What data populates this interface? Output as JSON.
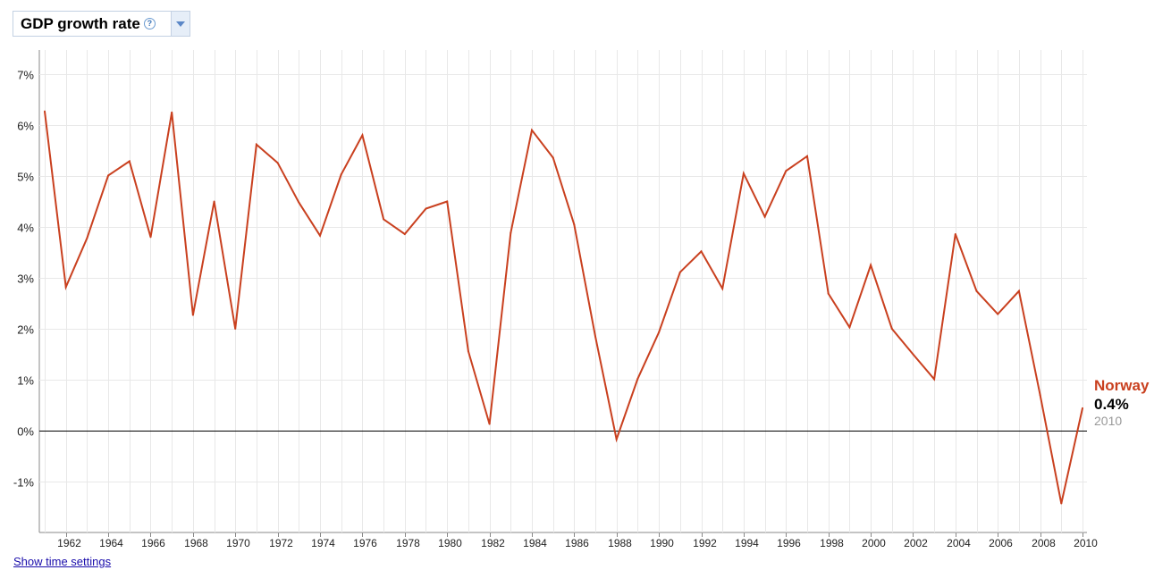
{
  "selector": {
    "metric_label": "GDP growth rate",
    "help_icon": "help-circle-icon",
    "dropdown_icon": "triangle-down-icon"
  },
  "time_settings_link": "Show time settings",
  "end_label": {
    "country": "Norway",
    "value": "0.4%",
    "year": "2010"
  },
  "colors": {
    "series": "#c9401f",
    "grid": "#e8e8e8",
    "axis": "#000000"
  },
  "chart_data": {
    "type": "line",
    "title": "GDP growth rate",
    "xlabel": "",
    "ylabel": "",
    "xlim": [
      1961,
      2010
    ],
    "ylim": [
      -2,
      7.5
    ],
    "grid": true,
    "x_ticks": [
      1962,
      1964,
      1966,
      1968,
      1970,
      1972,
      1974,
      1976,
      1978,
      1980,
      1982,
      1984,
      1986,
      1988,
      1990,
      1992,
      1994,
      1996,
      1998,
      2000,
      2002,
      2004,
      2006,
      2008,
      2010
    ],
    "y_ticks": [
      -1,
      0,
      1,
      2,
      3,
      4,
      5,
      6,
      7
    ],
    "y_tick_labels": [
      "-1%",
      "0%",
      "1%",
      "2%",
      "3%",
      "4%",
      "5%",
      "6%",
      "7%"
    ],
    "series": [
      {
        "name": "Norway",
        "x": [
          1961,
          1962,
          1963,
          1964,
          1965,
          1966,
          1967,
          1968,
          1969,
          1970,
          1971,
          1972,
          1973,
          1974,
          1975,
          1976,
          1977,
          1978,
          1979,
          1980,
          1981,
          1982,
          1983,
          1984,
          1985,
          1986,
          1987,
          1988,
          1989,
          1990,
          1991,
          1992,
          1993,
          1994,
          1995,
          1996,
          1997,
          1998,
          1999,
          2000,
          2001,
          2002,
          2003,
          2004,
          2005,
          2006,
          2007,
          2008,
          2009,
          2010
        ],
        "values": [
          6.27,
          2.82,
          3.78,
          5.01,
          5.29,
          3.8,
          6.25,
          2.27,
          4.5,
          2.0,
          5.62,
          5.26,
          4.48,
          3.83,
          5.03,
          5.8,
          4.15,
          3.86,
          4.36,
          4.5,
          1.56,
          0.13,
          3.88,
          5.9,
          5.36,
          4.05,
          1.85,
          -0.17,
          1.02,
          1.93,
          3.11,
          3.52,
          2.79,
          5.05,
          4.2,
          5.1,
          5.39,
          2.69,
          2.03,
          3.25,
          2.0,
          1.5,
          1.01,
          3.86,
          2.74,
          2.29,
          2.74,
          0.7,
          -1.43,
          0.44
        ]
      }
    ]
  }
}
